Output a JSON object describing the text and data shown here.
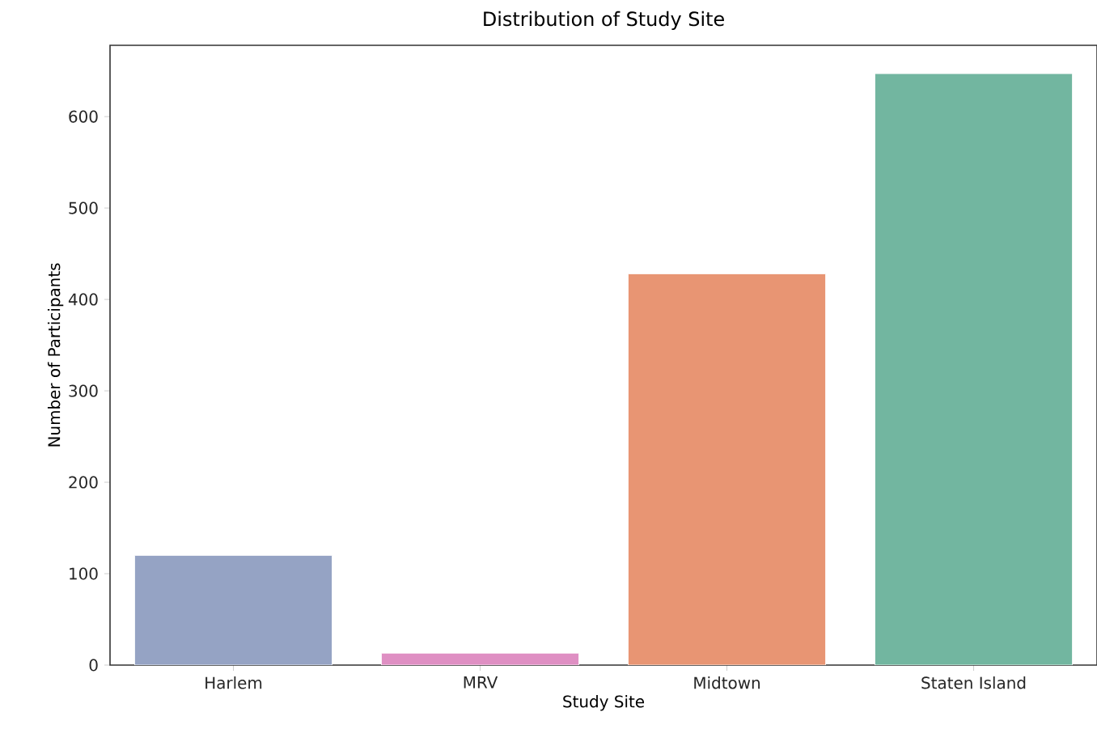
{
  "chart_data": {
    "type": "bar",
    "title": "Distribution of Study Site",
    "xlabel": "Study Site",
    "ylabel": "Number of Participants",
    "categories": [
      "Harlem",
      "MRV",
      "Midtown",
      "Staten Island"
    ],
    "values": [
      120,
      13,
      428,
      647
    ],
    "colors": [
      "#95a3c4",
      "#df8fc3",
      "#e89573",
      "#72b6a0"
    ],
    "ylim": [
      0,
      678
    ],
    "yticks": [
      0,
      100,
      200,
      300,
      400,
      500,
      600
    ],
    "grid": false
  }
}
